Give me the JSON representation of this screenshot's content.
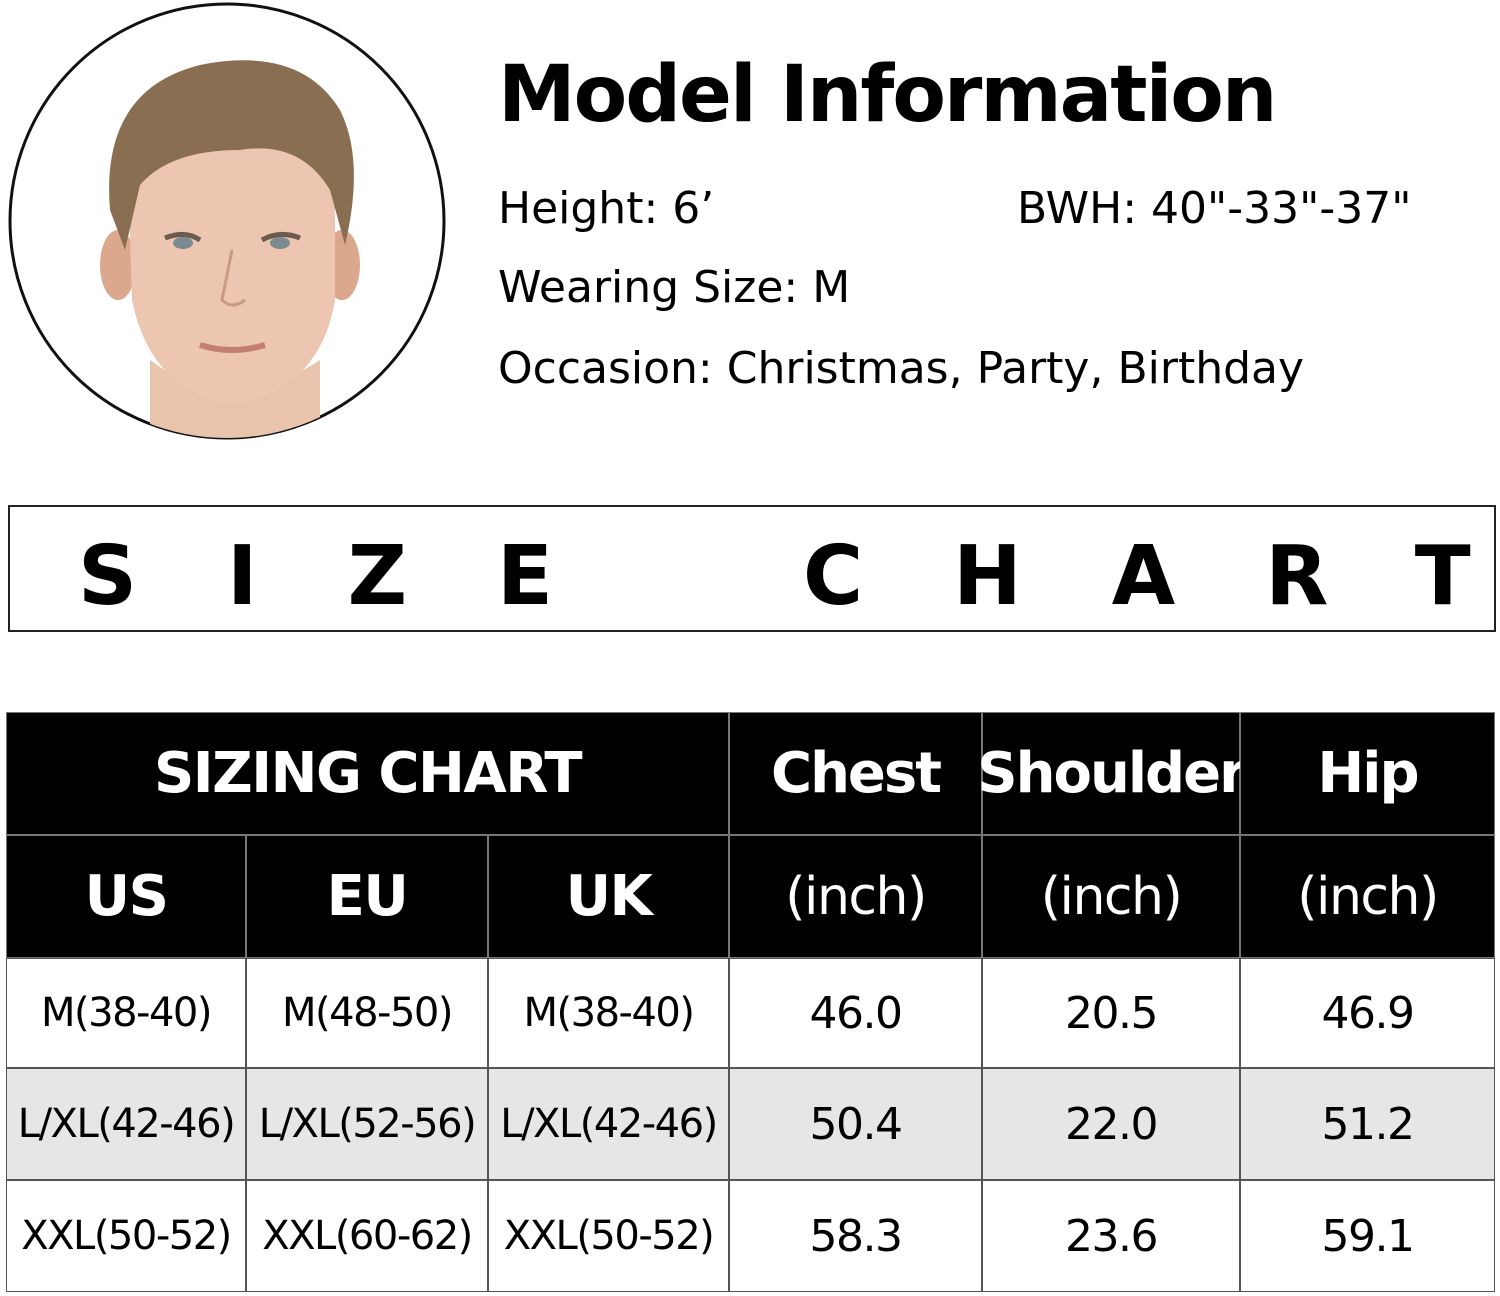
{
  "model": {
    "title": "Model Information",
    "height": "Height: 6’",
    "bwh": "BWH: 40\"-33\"-37\"",
    "wearing_size": "Wearing Size: M",
    "occasion": "Occasion: Christmas, Party, Birthday"
  },
  "banner": {
    "words": [
      "SIZE",
      "CHART"
    ]
  },
  "table": {
    "title": "SIZING CHART",
    "columns": [
      {
        "name": "Chest",
        "unit": "(inch)"
      },
      {
        "name": "Shoulder",
        "unit": "(inch)"
      },
      {
        "name": "Hip",
        "unit": "(inch)"
      }
    ],
    "regions": [
      "US",
      "EU",
      "UK"
    ],
    "rows": [
      [
        "M(38-40)",
        "M(48-50)",
        "M(38-40)",
        "46.0",
        "20.5",
        "46.9"
      ],
      [
        "L/XL(42-46)",
        "L/XL(52-56)",
        "L/XL(42-46)",
        "50.4",
        "22.0",
        "51.2"
      ],
      [
        "XXL(50-52)",
        "XXL(60-62)",
        "XXL(50-52)",
        "58.3",
        "23.6",
        "59.1"
      ]
    ]
  }
}
